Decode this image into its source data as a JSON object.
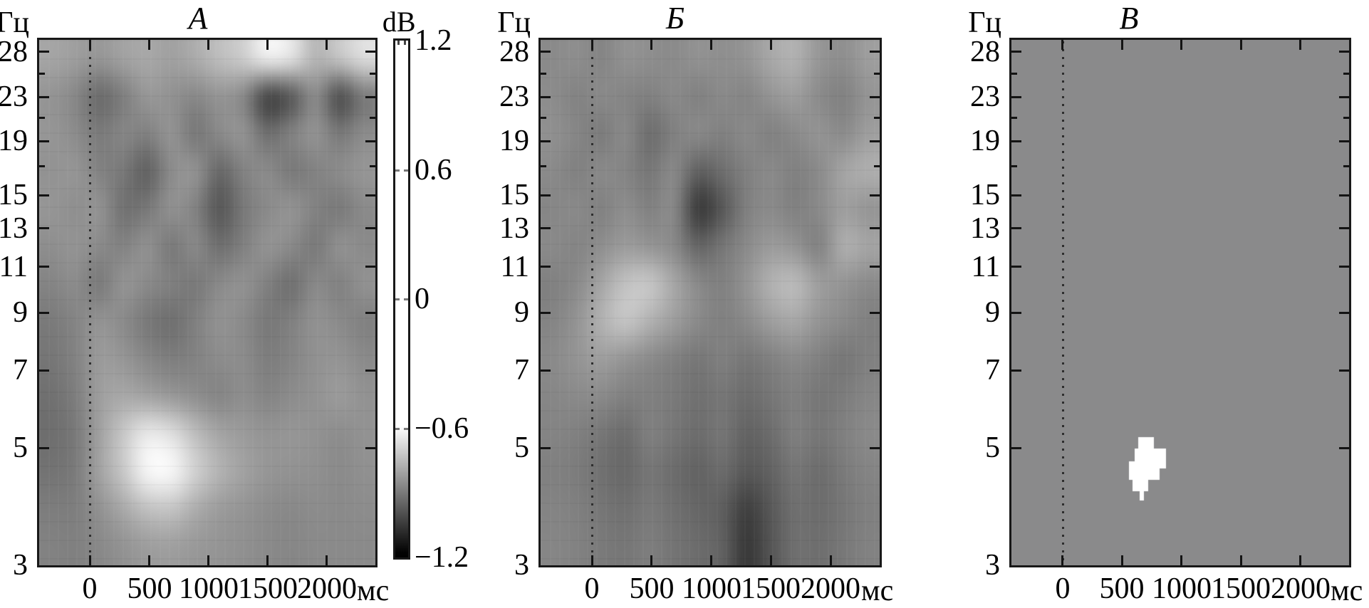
{
  "figure": {
    "y_axis_unit": "Гц",
    "x_axis_unit": "мс",
    "colorbar": {
      "label": "dB",
      "tick_labels": [
        "1.2",
        "0.6",
        "0",
        "−0.6",
        "−1.2"
      ],
      "tick_values": [
        1.2,
        0.6,
        0,
        -0.6,
        -1.2
      ],
      "max_db": 1.2,
      "min_db": -1.2,
      "white_until_db": -0.6,
      "top_color": "#ffffff",
      "bottom_color": "#000000"
    }
  },
  "chart_data": [
    {
      "type": "heatmap",
      "title": "А",
      "xlabel": "мс",
      "ylabel": "Гц",
      "x_ticks": [
        0,
        500,
        1000,
        1500,
        2000
      ],
      "y_ticks": [
        3,
        5,
        7,
        9,
        11,
        13,
        15,
        19,
        23,
        28
      ],
      "y_minor_ticks": [
        17,
        21,
        25.5
      ],
      "x_range_ms": [
        -430,
        2410
      ],
      "y_range_hz": [
        3,
        29.5
      ],
      "y_scale": "log",
      "onset_line_ms": 0,
      "value_range_db": [
        -1.2,
        1.2
      ],
      "grid_rows_top_to_bottom_gray": [
        [
          165,
          158,
          150,
          162,
          168,
          160,
          172,
          190,
          205,
          240,
          228,
          180,
          198,
          222
        ],
        [
          148,
          135,
          105,
          125,
          152,
          145,
          135,
          148,
          135,
          65,
          85,
          140,
          75,
          120
        ],
        [
          150,
          140,
          122,
          134,
          128,
          148,
          118,
          138,
          148,
          110,
          130,
          148,
          120,
          140
        ],
        [
          146,
          150,
          130,
          120,
          95,
          140,
          148,
          102,
          130,
          140,
          120,
          130,
          140,
          150
        ],
        [
          150,
          142,
          148,
          112,
          120,
          146,
          130,
          85,
          120,
          138,
          148,
          130,
          120,
          138
        ],
        [
          142,
          148,
          138,
          130,
          146,
          120,
          138,
          110,
          128,
          148,
          138,
          120,
          146,
          138
        ],
        [
          132,
          140,
          120,
          148,
          138,
          128,
          120,
          138,
          146,
          128,
          110,
          138,
          128,
          146
        ],
        [
          122,
          132,
          148,
          138,
          120,
          110,
          128,
          146,
          138,
          120,
          128,
          146,
          138,
          128
        ],
        [
          118,
          130,
          155,
          150,
          135,
          125,
          130,
          140,
          140,
          125,
          132,
          145,
          148,
          138
        ],
        [
          112,
          125,
          158,
          168,
          162,
          152,
          142,
          132,
          142,
          132,
          140,
          146,
          155,
          146
        ],
        [
          110,
          120,
          160,
          200,
          235,
          225,
          190,
          165,
          155,
          148,
          150,
          146,
          140,
          146
        ],
        [
          115,
          122,
          162,
          200,
          248,
          250,
          210,
          180,
          162,
          150,
          146,
          144,
          138,
          144
        ],
        [
          125,
          126,
          145,
          168,
          192,
          196,
          172,
          155,
          148,
          140,
          136,
          140,
          138,
          140
        ],
        [
          130,
          128,
          136,
          146,
          156,
          158,
          152,
          148,
          144,
          138,
          134,
          138,
          138,
          138
        ]
      ]
    },
    {
      "type": "heatmap",
      "title": "Б",
      "xlabel": "мс",
      "ylabel": "Гц",
      "x_ticks": [
        0,
        500,
        1000,
        1500,
        2000
      ],
      "y_ticks": [
        3,
        5,
        7,
        9,
        11,
        13,
        15,
        19,
        23,
        28
      ],
      "y_minor_ticks": [
        17,
        21,
        25.5
      ],
      "x_range_ms": [
        -430,
        2410
      ],
      "y_range_hz": [
        3,
        29.5
      ],
      "y_scale": "log",
      "onset_line_ms": 0,
      "value_range_db": [
        -1.2,
        1.2
      ],
      "grid_rows_top_to_bottom_gray": [
        [
          138,
          142,
          132,
          146,
          142,
          138,
          146,
          142,
          148,
          168,
          178,
          150,
          142,
          158
        ],
        [
          140,
          130,
          138,
          132,
          128,
          138,
          128,
          138,
          132,
          148,
          158,
          138,
          128,
          148
        ],
        [
          144,
          134,
          122,
          138,
          108,
          128,
          138,
          128,
          138,
          128,
          138,
          148,
          138,
          158
        ],
        [
          138,
          128,
          138,
          132,
          118,
          138,
          95,
          110,
          128,
          138,
          128,
          138,
          165,
          175
        ],
        [
          134,
          138,
          128,
          142,
          128,
          138,
          55,
          85,
          128,
          138,
          128,
          138,
          158,
          148
        ],
        [
          138,
          132,
          142,
          155,
          148,
          138,
          100,
          118,
          138,
          155,
          148,
          128,
          175,
          165
        ],
        [
          128,
          138,
          165,
          195,
          200,
          168,
          138,
          128,
          148,
          178,
          188,
          158,
          148,
          138
        ],
        [
          132,
          148,
          178,
          198,
          178,
          158,
          138,
          128,
          138,
          158,
          168,
          148,
          138,
          128
        ],
        [
          138,
          148,
          158,
          148,
          138,
          128,
          118,
          128,
          118,
          128,
          138,
          128,
          118,
          128
        ],
        [
          134,
          138,
          138,
          128,
          128,
          122,
          112,
          118,
          108,
          118,
          128,
          118,
          124,
          134
        ],
        [
          132,
          128,
          118,
          108,
          128,
          118,
          108,
          118,
          98,
          108,
          128,
          118,
          128,
          138
        ],
        [
          128,
          124,
          112,
          104,
          118,
          108,
          98,
          108,
          88,
          98,
          118,
          108,
          122,
          132
        ],
        [
          132,
          128,
          118,
          112,
          122,
          112,
          102,
          95,
          62,
          88,
          112,
          108,
          118,
          128
        ],
        [
          134,
          130,
          122,
          118,
          126,
          116,
          108,
          98,
          55,
          85,
          112,
          110,
          120,
          130
        ]
      ]
    },
    {
      "type": "heatmap",
      "title": "В",
      "xlabel": "мс",
      "ylabel": "Гц",
      "x_ticks": [
        0,
        500,
        1000,
        1500,
        2000
      ],
      "y_ticks": [
        3,
        5,
        7,
        9,
        11,
        13,
        15,
        19,
        23,
        28
      ],
      "y_minor_ticks": [
        17,
        21,
        25.5
      ],
      "x_range_ms": [
        -430,
        2410
      ],
      "y_range_hz": [
        3,
        29.5
      ],
      "y_scale": "log",
      "onset_line_ms": 0,
      "uniform_gray": "#8a8a8b",
      "significant_cluster": {
        "color": "#ffffff",
        "time_ms": [
          560,
          875
        ],
        "freq_hz": [
          3.97,
          5.24
        ],
        "rects": [
          {
            "t": [
              639,
              771
            ],
            "f": [
              4.94,
              5.24
            ]
          },
          {
            "t": [
              608,
              873
            ],
            "f": [
              4.57,
              4.98
            ]
          },
          {
            "t": [
              560,
              819
            ],
            "f": [
              4.35,
              4.72
            ]
          },
          {
            "t": [
              590,
              723
            ],
            "f": [
              4.14,
              4.37
            ]
          },
          {
            "t": [
              651,
              687
            ],
            "f": [
              3.97,
              4.16
            ]
          }
        ]
      }
    }
  ]
}
